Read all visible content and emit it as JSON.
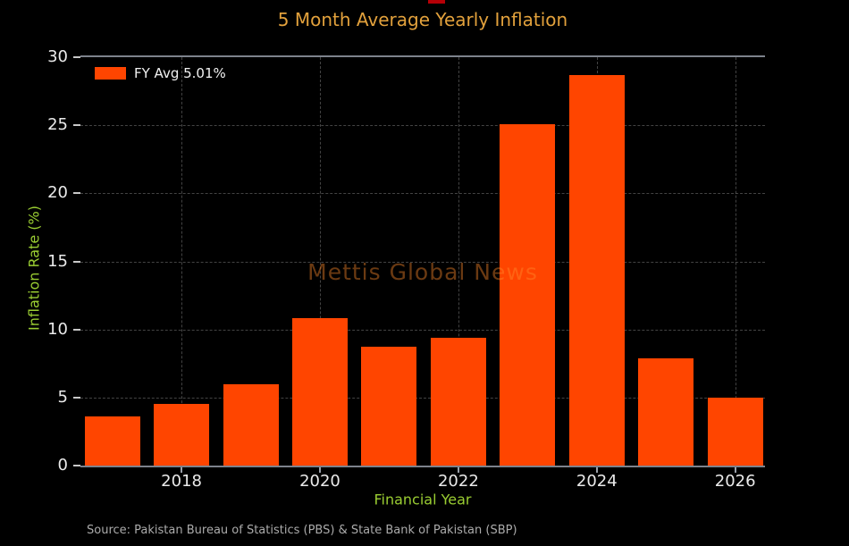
{
  "title": "5 Month Average Yearly Inflation",
  "watermark": "Mettis Global News",
  "source": "Source: Pakistan Bureau of Statistics (PBS) & State Bank of Pakistan (SBP)",
  "legend": {
    "label": "FY Avg 5.01%",
    "swatch_color": "#FF4500"
  },
  "colors": {
    "background": "#000000",
    "bar": "#FF4500",
    "title": "#E2A13C",
    "axis_label": "#9ACD32",
    "tick_label": "#EAEAEA",
    "spine": "#7D828C",
    "gridline": "#AFAFAF",
    "source_text": "#ABABAB",
    "watermark": "#FF8A2B"
  },
  "chart_data": {
    "type": "bar",
    "categories": [
      "2017",
      "2018",
      "2019",
      "2020",
      "2021",
      "2022",
      "2023",
      "2024",
      "2025",
      "2026"
    ],
    "values": [
      3.6,
      4.5,
      6.0,
      10.8,
      8.7,
      9.4,
      25.1,
      28.7,
      7.9,
      5.01
    ],
    "series_name": "FY Avg 5.01%",
    "title": "5 Month Average Yearly Inflation",
    "xlabel": "Financial Year",
    "ylabel": "Inflation Rate (%)",
    "ylim": [
      0,
      30
    ],
    "xlim": [
      2016.54,
      2026.43
    ],
    "yticks": [
      0,
      5,
      10,
      15,
      20,
      25,
      30
    ],
    "xticks": [
      2018,
      2020,
      2022,
      2024,
      2026
    ],
    "bar_width_years": 0.8,
    "grid": true,
    "grid_style": "dashed",
    "legend_position": "upper-left"
  }
}
